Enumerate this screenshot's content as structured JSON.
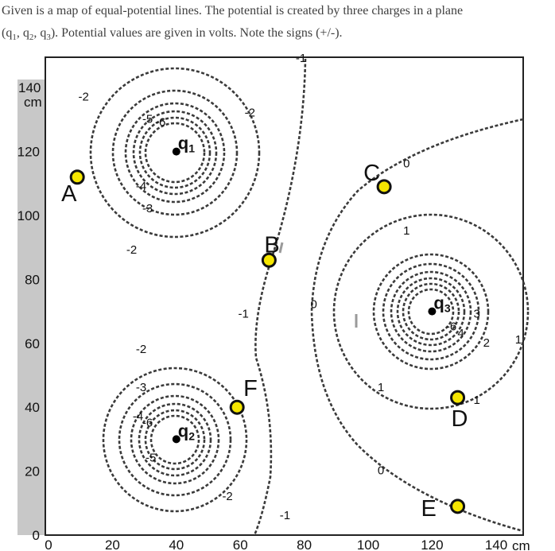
{
  "intro": {
    "line1": "Given is a map of equal-potential lines.  The potential is created by three charges in a plane",
    "line2_prefix": "(q",
    "line2_mid1": ", q",
    "line2_mid2": ", q",
    "line2_suffix": ").  Potential values are given in volts.  Note the signs (+/-).",
    "sub1": "1",
    "sub2": "2",
    "sub3": "3"
  },
  "axes": {
    "x_ticks": [
      "0",
      "20",
      "40",
      "60",
      "80",
      "100",
      "120"
    ],
    "x_last": "140",
    "x_unit": "cm",
    "y_ticks": [
      "0",
      "20",
      "40",
      "60",
      "80",
      "100",
      "120"
    ],
    "y_top": "140",
    "y_unit": "cm"
  },
  "charges": [
    {
      "letter": "q",
      "sub": "1",
      "x": 40,
      "y": 120
    },
    {
      "letter": "q",
      "sub": "2",
      "x": 40,
      "y": 30
    },
    {
      "letter": "q",
      "sub": "3",
      "x": 120,
      "y": 70
    }
  ],
  "points": [
    {
      "label": "A",
      "x": 9,
      "y": 112
    },
    {
      "label": "B",
      "x": 69,
      "y": 86
    },
    {
      "label": "C",
      "x": 105,
      "y": 109
    },
    {
      "label": "D",
      "x": 128,
      "y": 43
    },
    {
      "label": "E",
      "x": 128,
      "y": 9
    },
    {
      "label": "F",
      "x": 59,
      "y": 40
    }
  ],
  "contour_labels": [
    {
      "text": "-2",
      "x": 11,
      "y": 136
    },
    {
      "text": "-2",
      "x": 63,
      "y": 131
    },
    {
      "text": "-5",
      "x": 31,
      "y": 129
    },
    {
      "text": "-6",
      "x": 35,
      "y": 128
    },
    {
      "text": "-4",
      "x": 29,
      "y": 108
    },
    {
      "text": "-3",
      "x": 31,
      "y": 101
    },
    {
      "text": "-2",
      "x": 26,
      "y": 88
    },
    {
      "text": "-1",
      "x": 79,
      "y": 148
    },
    {
      "text": "0",
      "x": 112,
      "y": 115
    },
    {
      "text": "1",
      "x": 112,
      "y": 94
    },
    {
      "text": "0",
      "x": 83,
      "y": 71
    },
    {
      "text": "-1",
      "x": 61,
      "y": 68
    },
    {
      "text": "-6",
      "x": 126,
      "y": 64
    },
    {
      "text": "4",
      "x": 129,
      "y": 62
    },
    {
      "text": "3",
      "x": 134,
      "y": 68
    },
    {
      "text": "2",
      "x": 137,
      "y": 59
    },
    {
      "text": "1",
      "x": 147,
      "y": 60
    },
    {
      "text": "1",
      "x": 104,
      "y": 45
    },
    {
      "text": "1",
      "x": 134,
      "y": 41
    },
    {
      "text": "-2",
      "x": 29,
      "y": 57
    },
    {
      "text": "-3",
      "x": 29,
      "y": 45
    },
    {
      "text": "-4",
      "x": 28,
      "y": 36
    },
    {
      "text": "-6",
      "x": 31,
      "y": 34
    },
    {
      "text": "-5",
      "x": 32,
      "y": 23
    },
    {
      "text": "-2",
      "x": 56,
      "y": 11
    },
    {
      "text": "-1",
      "x": 74,
      "y": 5
    },
    {
      "text": "0",
      "x": 104,
      "y": 19
    }
  ]
}
